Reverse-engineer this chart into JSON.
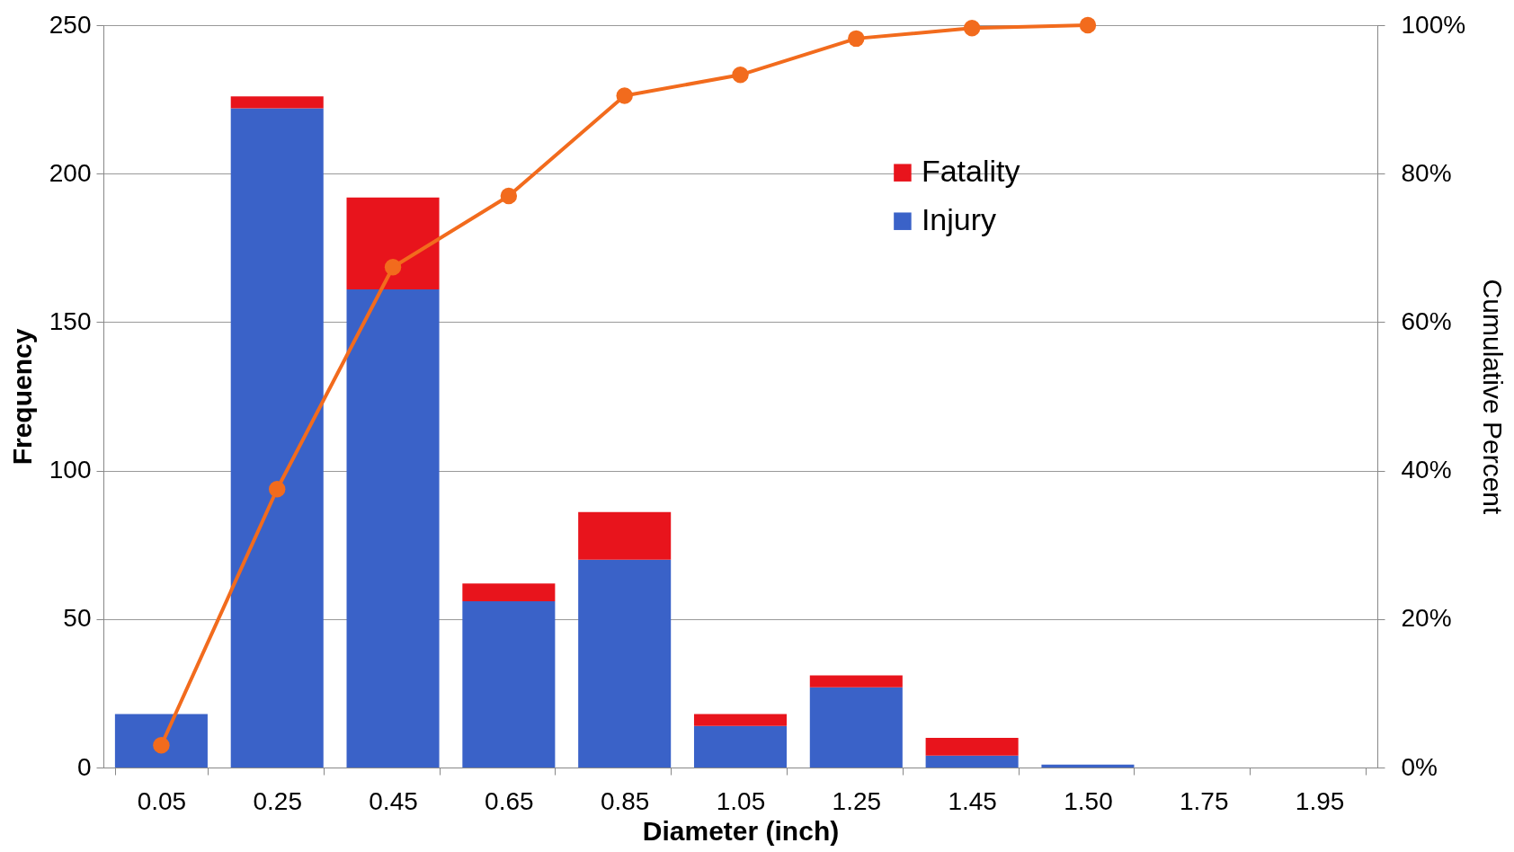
{
  "chart_data": {
    "type": "bar",
    "stacked": true,
    "xlabel": "Diameter (inch)",
    "ylabel": "Frequency",
    "y2label": "Cumulative Percent",
    "categories": [
      "0.05",
      "0.25",
      "0.45",
      "0.65",
      "0.85",
      "1.05",
      "1.25",
      "1.45",
      "1.50",
      "1.75",
      "1.95"
    ],
    "series": [
      {
        "name": "Injury",
        "color": "#3a62c8",
        "values": [
          18,
          222,
          161,
          56,
          70,
          14,
          27,
          4,
          1,
          0,
          0
        ]
      },
      {
        "name": "Fatality",
        "color": "#e8141c",
        "values": [
          0,
          4,
          31,
          6,
          16,
          4,
          4,
          6,
          0,
          0,
          0
        ]
      },
      {
        "type": "line",
        "axis": "y2",
        "color": "#f26b1d",
        "values": [
          3,
          37.5,
          67.4,
          77,
          90.5,
          93.3,
          98.2,
          99.6,
          100,
          null,
          null
        ]
      }
    ],
    "ylim": [
      0,
      250
    ],
    "yticks": [
      0,
      50,
      100,
      150,
      200,
      250
    ],
    "y2lim": [
      0,
      100
    ],
    "y2ticks": [
      {
        "value": 0,
        "label": "0%"
      },
      {
        "value": 20,
        "label": "20%"
      },
      {
        "value": 40,
        "label": "40%"
      },
      {
        "value": 60,
        "label": "60%"
      },
      {
        "value": 80,
        "label": "80%"
      },
      {
        "value": 100,
        "label": "100%"
      }
    ],
    "grid": "y",
    "legend": "top right",
    "marker": "circle"
  }
}
